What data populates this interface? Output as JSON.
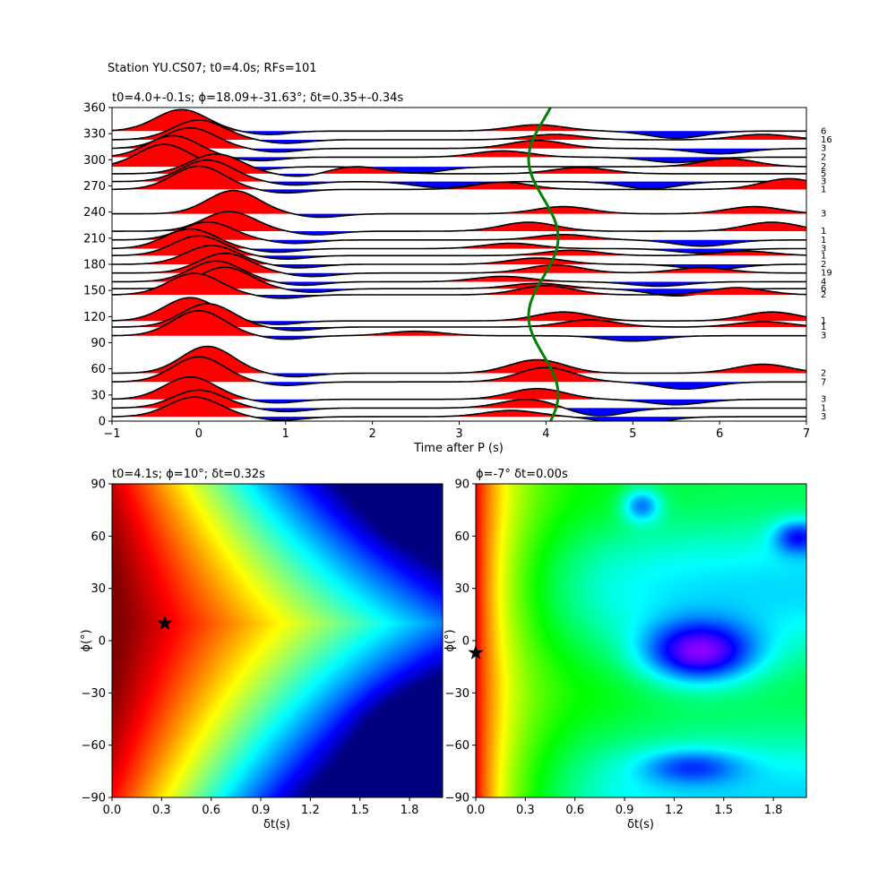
{
  "figure": {
    "suptitle": "Station YU.CS07; t0=4.0s; RFs=101"
  },
  "chart_data": [
    {
      "type": "line",
      "name": "receiver-function-traces",
      "title": "t0=4.0+-0.1s; ϕ=18.09+-31.63°; δt=0.35+-0.34s",
      "xlabel": "Time after P (s)",
      "ylabel": "",
      "xlim": [
        -1,
        7
      ],
      "ylim": [
        0,
        360
      ],
      "xticks": [
        -1,
        0,
        1,
        2,
        3,
        4,
        5,
        6,
        7
      ],
      "yticks": [
        0,
        30,
        60,
        90,
        120,
        150,
        180,
        210,
        240,
        270,
        300,
        330,
        360
      ],
      "positive_fill": "#ff0000",
      "negative_fill": "#0000ff",
      "trace_color": "#000000",
      "traces": [
        {
          "baz": 5,
          "count": "3",
          "amp": 22,
          "peak_t": -0.05,
          "late": [
            [
              3.6,
              7
            ],
            [
              5.0,
              -10
            ]
          ]
        },
        {
          "baz": 15,
          "count": "1",
          "amp": 20,
          "peak_t": 0.0,
          "late": [
            [
              3.8,
              10
            ],
            [
              4.6,
              -9
            ]
          ]
        },
        {
          "baz": 25,
          "count": "3",
          "amp": 25,
          "peak_t": -0.1,
          "late": [
            [
              3.9,
              12
            ],
            [
              5.5,
              -6
            ]
          ]
        },
        {
          "baz": 45,
          "count": "7",
          "amp": 28,
          "peak_t": 0.0,
          "late": [
            [
              4.0,
              16
            ],
            [
              5.6,
              -8
            ]
          ]
        },
        {
          "baz": 55,
          "count": "2",
          "amp": 30,
          "peak_t": 0.1,
          "late": [
            [
              3.9,
              15
            ],
            [
              6.5,
              10
            ]
          ]
        },
        {
          "baz": 98,
          "count": "3",
          "amp": 28,
          "peak_t": 0.0,
          "late": [
            [
              2.5,
              5
            ],
            [
              5.0,
              -6
            ]
          ]
        },
        {
          "baz": 108,
          "count": "1",
          "amp": 26,
          "peak_t": 0.1,
          "late": [
            [
              4.5,
              8
            ],
            [
              6.5,
              6
            ]
          ]
        },
        {
          "baz": 115,
          "count": "1",
          "amp": 26,
          "peak_t": -0.1,
          "late": [
            [
              4.2,
              10
            ],
            [
              6.6,
              10
            ]
          ]
        },
        {
          "baz": 145,
          "count": "2",
          "amp": 24,
          "peak_t": -0.05,
          "late": [
            [
              4.0,
              10
            ],
            [
              6.2,
              8
            ]
          ]
        },
        {
          "baz": 152,
          "count": "6",
          "amp": 24,
          "peak_t": 0.3,
          "late": [
            [
              3.9,
              6
            ],
            [
              5.5,
              -8
            ]
          ]
        },
        {
          "baz": 160,
          "count": "4",
          "amp": 23,
          "peak_t": 0.2,
          "late": [
            [
              3.5,
              6
            ],
            [
              5.3,
              -5
            ]
          ]
        },
        {
          "baz": 170,
          "count": "19",
          "amp": 22,
          "peak_t": 0.3,
          "late": [
            [
              4.1,
              9
            ],
            [
              5.8,
              6
            ]
          ]
        },
        {
          "baz": 180,
          "count": "2",
          "amp": 21,
          "peak_t": 0.15,
          "late": [
            [
              3.9,
              7
            ],
            [
              5.9,
              -6
            ]
          ]
        },
        {
          "baz": 190,
          "count": "1",
          "amp": 22,
          "peak_t": 0.0,
          "late": [
            [
              4.3,
              6
            ],
            [
              6.3,
              5
            ]
          ]
        },
        {
          "baz": 198,
          "count": "3",
          "amp": 22,
          "peak_t": -0.1,
          "late": [
            [
              3.6,
              6
            ],
            [
              5.8,
              -5
            ]
          ]
        },
        {
          "baz": 208,
          "count": "1",
          "amp": 20,
          "peak_t": 0.1,
          "late": [
            [
              4.2,
              6
            ],
            [
              5.8,
              -7
            ]
          ]
        },
        {
          "baz": 218,
          "count": "1",
          "amp": 22,
          "peak_t": 0.35,
          "late": [
            [
              3.8,
              10
            ],
            [
              6.6,
              10
            ]
          ]
        },
        {
          "baz": 238,
          "count": "3",
          "amp": 26,
          "peak_t": 0.4,
          "late": [
            [
              4.2,
              8
            ],
            [
              6.4,
              8
            ]
          ]
        },
        {
          "baz": 266,
          "count": "1",
          "amp": 26,
          "peak_t": 0.0,
          "late": [
            [
              3.5,
              8
            ],
            [
              6.8,
              12
            ]
          ]
        },
        {
          "baz": 275,
          "count": "3",
          "amp": 24,
          "peak_t": 0.1,
          "late": [
            [
              2.8,
              -7
            ],
            [
              5.2,
              -8
            ]
          ]
        },
        {
          "baz": 284,
          "count": "5",
          "amp": 22,
          "peak_t": 0.2,
          "late": [
            [
              1.8,
              8
            ],
            [
              4.4,
              7
            ]
          ]
        },
        {
          "baz": 292,
          "count": "2",
          "amp": 25,
          "peak_t": -0.4,
          "late": [
            [
              2.5,
              -7
            ],
            [
              6.1,
              9
            ]
          ]
        },
        {
          "baz": 303,
          "count": "2",
          "amp": 24,
          "peak_t": -0.3,
          "late": [
            [
              3.5,
              7
            ],
            [
              5.5,
              -6
            ]
          ]
        },
        {
          "baz": 313,
          "count": "3",
          "amp": 23,
          "peak_t": -0.1,
          "late": [
            [
              3.9,
              9
            ],
            [
              6.0,
              -6
            ]
          ]
        },
        {
          "baz": 323,
          "count": "16",
          "amp": 22,
          "peak_t": 0.0,
          "late": [
            [
              4.1,
              6
            ],
            [
              6.5,
              6
            ]
          ]
        },
        {
          "baz": 333,
          "count": "6",
          "amp": 24,
          "peak_t": -0.2,
          "late": [
            [
              3.9,
              7
            ],
            [
              5.5,
              -8
            ]
          ]
        }
      ],
      "model_curve": {
        "color": "#008000",
        "t0": 3.97,
        "amplitude": 0.17,
        "note": ""
      }
    },
    {
      "type": "heatmap",
      "name": "energy-minimization-grid",
      "title": "t0=4.1s; ϕ=10°; δt=0.32s",
      "xlabel": "δt(s)",
      "ylabel": "ϕ(°)",
      "xlim": [
        0,
        2.0
      ],
      "ylim": [
        -90,
        90
      ],
      "xticks": [
        "0.0",
        "0.3",
        "0.6",
        "0.9",
        "1.2",
        "1.5",
        "1.8"
      ],
      "yticks": [
        "90",
        "60",
        "30",
        "0",
        "−30",
        "−60",
        "−90"
      ],
      "colormap": "jet",
      "best": {
        "dt": 0.32,
        "phi": 10
      }
    },
    {
      "type": "heatmap",
      "name": "transverse-energy-grid",
      "title": "ϕ=-7° δt=0.00s",
      "xlabel": "δt(s)",
      "ylabel": "ϕ(°)",
      "xlim": [
        0,
        2.0
      ],
      "ylim": [
        -90,
        90
      ],
      "xticks": [
        "0.0",
        "0.3",
        "0.6",
        "0.9",
        "1.2",
        "1.5",
        "1.8"
      ],
      "yticks": [
        "90",
        "60",
        "30",
        "0",
        "−30",
        "−60",
        "−90"
      ],
      "colormap": "gist_rainbow",
      "best": {
        "dt": 0.0,
        "phi": -7
      }
    }
  ]
}
